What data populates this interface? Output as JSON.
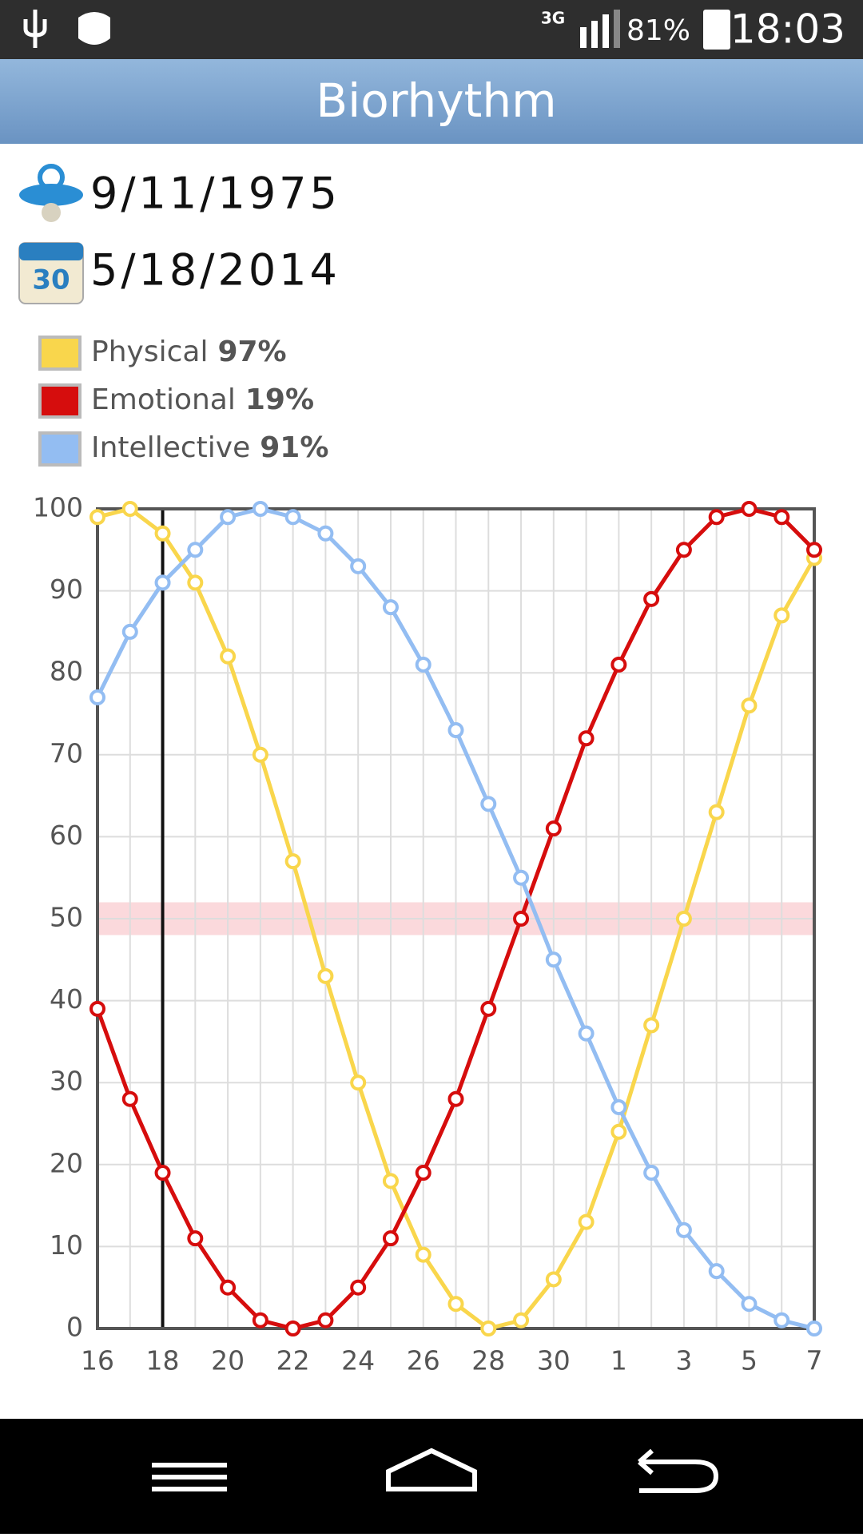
{
  "status_bar": {
    "network": "3G",
    "battery": "81%",
    "time": "18:03"
  },
  "header": {
    "title": "Biorhythm"
  },
  "birth_date": "9/11/1975",
  "current_date": "5/18/2014",
  "chart_data": {
    "type": "line",
    "categories": [
      "16",
      null,
      "18",
      null,
      "20",
      null,
      "22",
      null,
      "24",
      null,
      "26",
      null,
      "28",
      null,
      "30",
      null,
      "1",
      null,
      "3",
      null,
      "5",
      null,
      "7"
    ],
    "series": [
      {
        "name": "Physical",
        "color": "#f9d64c",
        "today": {
          "value": 97,
          "label": "97%"
        },
        "values": [
          99,
          100,
          97,
          91,
          82,
          70,
          57,
          43,
          30,
          18,
          9,
          3,
          0,
          1,
          6,
          13,
          24,
          37,
          50,
          63,
          76,
          87,
          94
        ]
      },
      {
        "name": "Emotional",
        "color": "#d60d0d",
        "today": {
          "value": 19,
          "label": "19%"
        },
        "values": [
          39,
          28,
          19,
          11,
          5,
          1,
          0,
          1,
          5,
          11,
          19,
          28,
          39,
          50,
          61,
          72,
          81,
          89,
          95,
          99,
          100,
          99,
          95
        ]
      },
      {
        "name": "Intellective",
        "color": "#93bdf2",
        "today": {
          "value": 91,
          "label": "91%"
        },
        "values": [
          77,
          85,
          91,
          95,
          99,
          100,
          99,
          97,
          93,
          88,
          81,
          73,
          64,
          55,
          45,
          36,
          27,
          19,
          12,
          7,
          3,
          1,
          0
        ]
      }
    ],
    "ylim": [
      0,
      100
    ],
    "yticks": [
      0,
      10,
      20,
      30,
      40,
      50,
      60,
      70,
      80,
      90,
      100
    ],
    "grid": true,
    "today_index": 2,
    "band": [
      48,
      52
    ]
  }
}
